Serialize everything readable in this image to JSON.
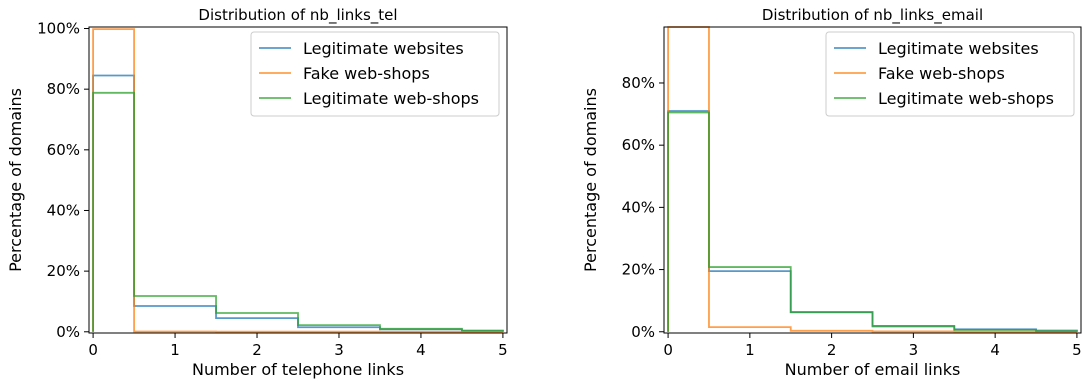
{
  "chart_data": [
    {
      "type": "step",
      "title": "Distribution of nb_links_tel",
      "xlabel": "Number of telephone links",
      "ylabel": "Percentage of domains",
      "xlim": [
        -0.05,
        5.05
      ],
      "ylim": [
        -0.4,
        100.5
      ],
      "xticks": [
        "0",
        "1",
        "2",
        "3",
        "4",
        "5"
      ],
      "yticks": [
        0,
        20,
        40,
        60,
        80,
        100
      ],
      "ytick_labels": [
        "0%",
        "20%",
        "40%",
        "60%",
        "80%",
        "100%"
      ],
      "legend_position": "upper right",
      "x": [
        0,
        1,
        2,
        3,
        4,
        5
      ],
      "series": [
        {
          "name": "Legitimate websites",
          "color": "#1f77b4",
          "values": [
            84.5,
            8.5,
            4.5,
            1.5,
            0.8,
            0.3
          ]
        },
        {
          "name": "Fake web-shops",
          "color": "#ff7f0e",
          "values": [
            99.8,
            0.1,
            0.05,
            0.03,
            0.02,
            0.0
          ]
        },
        {
          "name": "Legitimate web-shops",
          "color": "#2ca02c",
          "values": [
            78.8,
            11.8,
            6.2,
            2.2,
            1.0,
            0.4
          ]
        }
      ]
    },
    {
      "type": "step",
      "title": "Distribution of nb_links_email",
      "xlabel": "Number of email links",
      "ylabel": "Percentage of domains",
      "xlim": [
        -0.05,
        5.05
      ],
      "ylim": [
        -0.4,
        98.0
      ],
      "xticks": [
        "0",
        "1",
        "2",
        "3",
        "4",
        "5"
      ],
      "yticks": [
        0,
        20,
        40,
        60,
        80
      ],
      "ytick_labels": [
        "0%",
        "20%",
        "40%",
        "60%",
        "80%"
      ],
      "legend_position": "upper right",
      "x": [
        0,
        1,
        2,
        3,
        4,
        5
      ],
      "series": [
        {
          "name": "Legitimate websites",
          "color": "#1f77b4",
          "values": [
            71.0,
            19.5,
            6.3,
            1.9,
            0.8,
            0.4
          ]
        },
        {
          "name": "Fake web-shops",
          "color": "#ff7f0e",
          "values": [
            98.0,
            1.5,
            0.3,
            0.1,
            0.05,
            0.0
          ]
        },
        {
          "name": "Legitimate web-shops",
          "color": "#2ca02c",
          "values": [
            70.5,
            20.8,
            6.3,
            1.7,
            0.6,
            0.2
          ]
        }
      ]
    }
  ]
}
